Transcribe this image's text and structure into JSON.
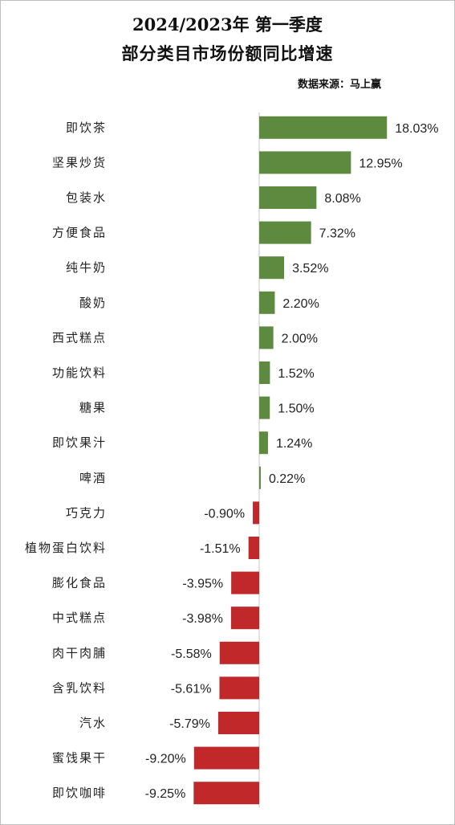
{
  "title_line1": "2024/2023年 第一季度",
  "title_line2": "部分类目市场份额同比增速",
  "source": "数据来源：马上赢",
  "colors": {
    "positive": "#5e8a3f",
    "negative": "#c0282a",
    "axis": "#d9d9d9"
  },
  "chart_data": {
    "type": "bar",
    "orientation": "horizontal",
    "title": "2024/2023年 第一季度 部分类目市场份额同比增速",
    "unit": "%",
    "categories": [
      "即饮茶",
      "坚果炒货",
      "包装水",
      "方便食品",
      "纯牛奶",
      "酸奶",
      "西式糕点",
      "功能饮料",
      "糖果",
      "即饮果汁",
      "啤酒",
      "巧克力",
      "植物蛋白饮料",
      "膨化食品",
      "中式糕点",
      "肉干肉脯",
      "含乳饮料",
      "汽水",
      "蜜饯果干",
      "即饮咖啡"
    ],
    "values": [
      18.03,
      12.95,
      8.08,
      7.32,
      3.52,
      2.2,
      2.0,
      1.52,
      1.5,
      1.24,
      0.22,
      -0.9,
      -1.51,
      -3.95,
      -3.98,
      -5.58,
      -5.61,
      -5.79,
      -9.2,
      -9.25
    ],
    "labels": [
      "18.03%",
      "12.95%",
      "8.08%",
      "7.32%",
      "3.52%",
      "2.20%",
      "2.00%",
      "1.52%",
      "1.50%",
      "1.24%",
      "0.22%",
      "-0.90%",
      "-1.51%",
      "-3.95%",
      "-3.98%",
      "-5.58%",
      "-5.61%",
      "-5.79%",
      "-9.20%",
      "-9.25%"
    ],
    "grid": false,
    "legend": "none"
  }
}
